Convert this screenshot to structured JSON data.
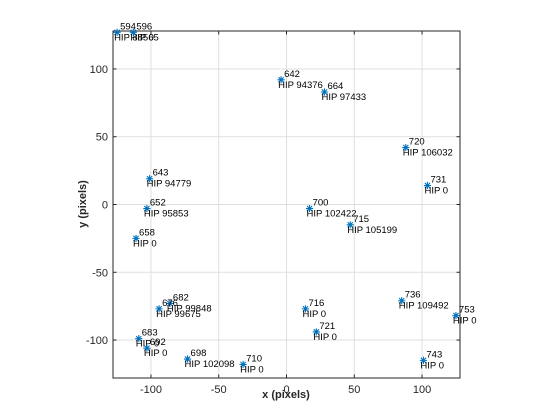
{
  "chart_data": {
    "type": "scatter",
    "xlabel": "x (pixels)",
    "ylabel": "y (pixels)",
    "xlim": [
      -128,
      128
    ],
    "ylim": [
      -128,
      128
    ],
    "xticks": [
      -100,
      -50,
      0,
      50,
      100
    ],
    "yticks": [
      -100,
      -50,
      0,
      50,
      100
    ],
    "grid": true,
    "marker_color": "#0072bd",
    "points": [
      {
        "x": -125,
        "y": 127,
        "id": "594",
        "hip": "HIP 88565"
      },
      {
        "x": -113,
        "y": 127,
        "id": "596",
        "hip": "HIP 0"
      },
      {
        "x": -4,
        "y": 92,
        "id": "642",
        "hip": "HIP 94376"
      },
      {
        "x": 28,
        "y": 83,
        "id": "664",
        "hip": "HIP 97433"
      },
      {
        "x": 88,
        "y": 42,
        "id": "720",
        "hip": "HIP 106032"
      },
      {
        "x": 104,
        "y": 14,
        "id": "731",
        "hip": "HIP 0"
      },
      {
        "x": -101,
        "y": 19,
        "id": "643",
        "hip": "HIP 94779"
      },
      {
        "x": -103,
        "y": -3,
        "id": "652",
        "hip": "HIP 95853"
      },
      {
        "x": 17,
        "y": -3,
        "id": "700",
        "hip": "HIP 102422"
      },
      {
        "x": 47,
        "y": -15,
        "id": "715",
        "hip": "HIP 105199"
      },
      {
        "x": -111,
        "y": -25,
        "id": "658",
        "hip": "HIP 0"
      },
      {
        "x": 85,
        "y": -71,
        "id": "736",
        "hip": "HIP 109492"
      },
      {
        "x": 125,
        "y": -82,
        "id": "753",
        "hip": "HIP 0"
      },
      {
        "x": -86,
        "y": -73,
        "id": "682",
        "hip": "HIP 99848"
      },
      {
        "x": -94,
        "y": -77,
        "id": "676",
        "hip": "HIP 99675"
      },
      {
        "x": 14,
        "y": -77,
        "id": "716",
        "hip": "HIP 0"
      },
      {
        "x": 22,
        "y": -94,
        "id": "721",
        "hip": "HIP 0"
      },
      {
        "x": -109,
        "y": -99,
        "id": "683",
        "hip": "HIP 0"
      },
      {
        "x": -103,
        "y": -106,
        "id": "692",
        "hip": "HIP 0"
      },
      {
        "x": -73,
        "y": -114,
        "id": "698",
        "hip": "HIP 102098"
      },
      {
        "x": -32,
        "y": -118,
        "id": "710",
        "hip": "HIP 0"
      },
      {
        "x": 101,
        "y": -115,
        "id": "743",
        "hip": "HIP 0"
      }
    ]
  }
}
